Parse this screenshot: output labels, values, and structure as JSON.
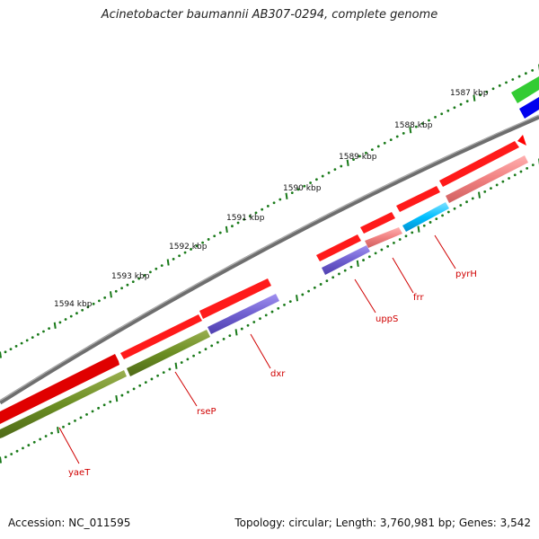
{
  "title": "Acinetobacter baumannii AB307-0294, complete genome",
  "footer": {
    "accession": "Accession: NC_011595",
    "summary": "Topology: circular; Length: 3,760,981 bp; Genes: 3,542"
  },
  "scale_labels": [
    "1587 kbp",
    "1588 kbp",
    "1589 kbp",
    "1590 kbp",
    "1591 kbp",
    "1592 kbp",
    "1593 kbp",
    "1594 kbp"
  ],
  "genes": [
    {
      "name": "yaeT",
      "color": "#6b8e23"
    },
    {
      "name": "rseP",
      "color": "#6b8e23"
    },
    {
      "name": "dxr",
      "color": "#7060d0"
    },
    {
      "name": "uppS",
      "color": "#7060d0"
    },
    {
      "name": "frr",
      "color": "#f08080"
    },
    {
      "name": "pyrH",
      "color": "#f08080"
    }
  ],
  "colors": {
    "backbone": "#808080",
    "cds_arrow": "#ff0000",
    "tick": "#1a7a1a",
    "gene_label": "#cc0000",
    "cyan_feature": "#00bfff",
    "green_feature": "#33cc33",
    "blue_feature": "#0000ee"
  }
}
